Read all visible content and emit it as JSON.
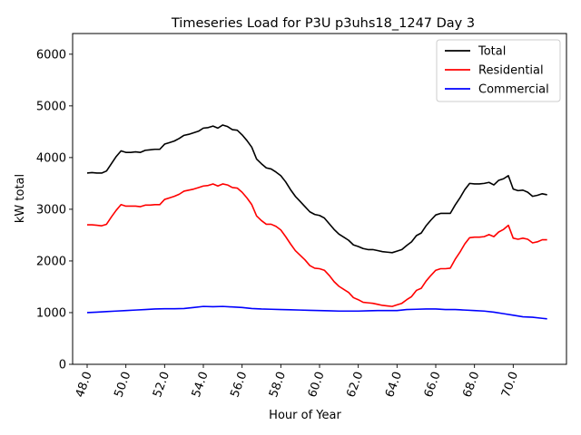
{
  "chart_data": {
    "type": "line",
    "title": "Timeseries Load for P3U p3uhs18_1247  Day 3",
    "xlabel": "Hour of Year",
    "ylabel": "kW total",
    "xlim": [
      47.25,
      72.75
    ],
    "ylim": [
      0,
      6400
    ],
    "xticks": [
      48,
      50,
      52,
      54,
      56,
      58,
      60,
      62,
      64,
      66,
      68,
      70
    ],
    "xtick_labels": [
      "48.0",
      "50.0",
      "52.0",
      "54.0",
      "56.0",
      "58.0",
      "60.0",
      "62.0",
      "64.0",
      "66.0",
      "68.0",
      "70.0"
    ],
    "yticks": [
      0,
      1000,
      2000,
      3000,
      4000,
      5000,
      6000
    ],
    "ytick_labels": [
      "0",
      "1000",
      "2000",
      "3000",
      "4000",
      "5000",
      "6000"
    ],
    "grid": false,
    "legend_position": "top-right",
    "series": [
      {
        "name": "Total",
        "color": "#000000",
        "points": [
          [
            48,
            3700
          ],
          [
            48.25,
            3710
          ],
          [
            48.5,
            3700
          ],
          [
            48.75,
            3700
          ],
          [
            49,
            3740
          ],
          [
            49.25,
            3880
          ],
          [
            49.5,
            4020
          ],
          [
            49.75,
            4130
          ],
          [
            50,
            4100
          ],
          [
            50.25,
            4100
          ],
          [
            50.5,
            4110
          ],
          [
            50.75,
            4100
          ],
          [
            51,
            4140
          ],
          [
            51.25,
            4150
          ],
          [
            51.5,
            4160
          ],
          [
            51.75,
            4160
          ],
          [
            52,
            4260
          ],
          [
            52.25,
            4290
          ],
          [
            52.5,
            4320
          ],
          [
            52.75,
            4370
          ],
          [
            53,
            4430
          ],
          [
            53.25,
            4450
          ],
          [
            53.5,
            4480
          ],
          [
            53.75,
            4510
          ],
          [
            54,
            4570
          ],
          [
            54.25,
            4580
          ],
          [
            54.5,
            4610
          ],
          [
            54.75,
            4570
          ],
          [
            55,
            4630
          ],
          [
            55.25,
            4600
          ],
          [
            55.5,
            4540
          ],
          [
            55.75,
            4530
          ],
          [
            56,
            4440
          ],
          [
            56.25,
            4330
          ],
          [
            56.5,
            4200
          ],
          [
            56.75,
            3970
          ],
          [
            57,
            3880
          ],
          [
            57.25,
            3800
          ],
          [
            57.5,
            3780
          ],
          [
            57.75,
            3720
          ],
          [
            58,
            3650
          ],
          [
            58.25,
            3530
          ],
          [
            58.5,
            3380
          ],
          [
            58.75,
            3250
          ],
          [
            59,
            3150
          ],
          [
            59.25,
            3050
          ],
          [
            59.5,
            2950
          ],
          [
            59.75,
            2900
          ],
          [
            60,
            2880
          ],
          [
            60.25,
            2830
          ],
          [
            60.5,
            2720
          ],
          [
            60.75,
            2610
          ],
          [
            61,
            2520
          ],
          [
            61.25,
            2460
          ],
          [
            61.5,
            2400
          ],
          [
            61.75,
            2310
          ],
          [
            62,
            2280
          ],
          [
            62.25,
            2240
          ],
          [
            62.5,
            2220
          ],
          [
            62.75,
            2220
          ],
          [
            63,
            2200
          ],
          [
            63.25,
            2180
          ],
          [
            63.5,
            2170
          ],
          [
            63.75,
            2160
          ],
          [
            64,
            2190
          ],
          [
            64.25,
            2220
          ],
          [
            64.5,
            2300
          ],
          [
            64.75,
            2370
          ],
          [
            65,
            2490
          ],
          [
            65.25,
            2540
          ],
          [
            65.5,
            2680
          ],
          [
            65.75,
            2790
          ],
          [
            66,
            2890
          ],
          [
            66.25,
            2920
          ],
          [
            66.5,
            2920
          ],
          [
            66.75,
            2920
          ],
          [
            67,
            3080
          ],
          [
            67.25,
            3220
          ],
          [
            67.5,
            3380
          ],
          [
            67.75,
            3500
          ],
          [
            68,
            3490
          ],
          [
            68.25,
            3490
          ],
          [
            68.5,
            3500
          ],
          [
            68.75,
            3520
          ],
          [
            69,
            3470
          ],
          [
            69.25,
            3560
          ],
          [
            69.5,
            3590
          ],
          [
            69.75,
            3650
          ],
          [
            70,
            3390
          ],
          [
            70.25,
            3360
          ],
          [
            70.5,
            3370
          ],
          [
            70.75,
            3330
          ],
          [
            71,
            3250
          ],
          [
            71.25,
            3270
          ],
          [
            71.5,
            3300
          ],
          [
            71.75,
            3280
          ]
        ]
      },
      {
        "name": "Residential",
        "color": "#ff0000",
        "points": [
          [
            48,
            2700
          ],
          [
            48.25,
            2700
          ],
          [
            48.5,
            2690
          ],
          [
            48.75,
            2680
          ],
          [
            49,
            2710
          ],
          [
            49.25,
            2850
          ],
          [
            49.5,
            2980
          ],
          [
            49.75,
            3090
          ],
          [
            50,
            3060
          ],
          [
            50.25,
            3060
          ],
          [
            50.5,
            3060
          ],
          [
            50.75,
            3050
          ],
          [
            51,
            3080
          ],
          [
            51.25,
            3080
          ],
          [
            51.5,
            3090
          ],
          [
            51.75,
            3090
          ],
          [
            52,
            3190
          ],
          [
            52.25,
            3220
          ],
          [
            52.5,
            3250
          ],
          [
            52.75,
            3290
          ],
          [
            53,
            3350
          ],
          [
            53.25,
            3370
          ],
          [
            53.5,
            3390
          ],
          [
            53.75,
            3420
          ],
          [
            54,
            3450
          ],
          [
            54.25,
            3460
          ],
          [
            54.5,
            3490
          ],
          [
            54.75,
            3450
          ],
          [
            55,
            3490
          ],
          [
            55.25,
            3470
          ],
          [
            55.5,
            3420
          ],
          [
            55.75,
            3410
          ],
          [
            56,
            3330
          ],
          [
            56.25,
            3220
          ],
          [
            56.5,
            3090
          ],
          [
            56.75,
            2870
          ],
          [
            57,
            2780
          ],
          [
            57.25,
            2710
          ],
          [
            57.5,
            2710
          ],
          [
            57.75,
            2670
          ],
          [
            58,
            2600
          ],
          [
            58.25,
            2470
          ],
          [
            58.5,
            2330
          ],
          [
            58.75,
            2200
          ],
          [
            59,
            2110
          ],
          [
            59.25,
            2020
          ],
          [
            59.5,
            1910
          ],
          [
            59.75,
            1860
          ],
          [
            60,
            1850
          ],
          [
            60.25,
            1820
          ],
          [
            60.5,
            1720
          ],
          [
            60.75,
            1600
          ],
          [
            61,
            1510
          ],
          [
            61.25,
            1450
          ],
          [
            61.5,
            1390
          ],
          [
            61.75,
            1290
          ],
          [
            62,
            1250
          ],
          [
            62.25,
            1200
          ],
          [
            62.5,
            1190
          ],
          [
            62.75,
            1180
          ],
          [
            63,
            1160
          ],
          [
            63.25,
            1140
          ],
          [
            63.5,
            1130
          ],
          [
            63.75,
            1120
          ],
          [
            64,
            1150
          ],
          [
            64.25,
            1180
          ],
          [
            64.5,
            1250
          ],
          [
            64.75,
            1310
          ],
          [
            65,
            1430
          ],
          [
            65.25,
            1470
          ],
          [
            65.5,
            1610
          ],
          [
            65.75,
            1720
          ],
          [
            66,
            1820
          ],
          [
            66.25,
            1850
          ],
          [
            66.5,
            1850
          ],
          [
            66.75,
            1860
          ],
          [
            67,
            2030
          ],
          [
            67.25,
            2170
          ],
          [
            67.5,
            2330
          ],
          [
            67.75,
            2450
          ],
          [
            68,
            2460
          ],
          [
            68.25,
            2460
          ],
          [
            68.5,
            2470
          ],
          [
            68.75,
            2510
          ],
          [
            69,
            2470
          ],
          [
            69.25,
            2560
          ],
          [
            69.5,
            2610
          ],
          [
            69.75,
            2690
          ],
          [
            70,
            2440
          ],
          [
            70.25,
            2420
          ],
          [
            70.5,
            2440
          ],
          [
            70.75,
            2420
          ],
          [
            71,
            2350
          ],
          [
            71.25,
            2370
          ],
          [
            71.5,
            2410
          ],
          [
            71.75,
            2410
          ]
        ]
      },
      {
        "name": "Commercial",
        "color": "#0000ff",
        "points": [
          [
            48,
            1000
          ],
          [
            48.5,
            1010
          ],
          [
            49,
            1020
          ],
          [
            49.5,
            1030
          ],
          [
            50,
            1040
          ],
          [
            50.5,
            1050
          ],
          [
            51,
            1060
          ],
          [
            51.5,
            1070
          ],
          [
            52,
            1075
          ],
          [
            52.5,
            1075
          ],
          [
            53,
            1080
          ],
          [
            53.5,
            1100
          ],
          [
            54,
            1120
          ],
          [
            54.5,
            1115
          ],
          [
            55,
            1120
          ],
          [
            55.5,
            1110
          ],
          [
            56,
            1100
          ],
          [
            56.5,
            1080
          ],
          [
            57,
            1070
          ],
          [
            57.5,
            1065
          ],
          [
            58,
            1060
          ],
          [
            58.5,
            1055
          ],
          [
            59,
            1050
          ],
          [
            59.5,
            1045
          ],
          [
            60,
            1040
          ],
          [
            60.5,
            1035
          ],
          [
            61,
            1030
          ],
          [
            61.5,
            1030
          ],
          [
            62,
            1030
          ],
          [
            62.5,
            1035
          ],
          [
            63,
            1040
          ],
          [
            63.5,
            1040
          ],
          [
            64,
            1040
          ],
          [
            64.5,
            1060
          ],
          [
            65,
            1065
          ],
          [
            65.5,
            1070
          ],
          [
            66,
            1070
          ],
          [
            66.5,
            1060
          ],
          [
            67,
            1060
          ],
          [
            67.5,
            1050
          ],
          [
            68,
            1040
          ],
          [
            68.5,
            1030
          ],
          [
            69,
            1010
          ],
          [
            69.5,
            980
          ],
          [
            70,
            950
          ],
          [
            70.5,
            920
          ],
          [
            71,
            910
          ],
          [
            71.5,
            890
          ],
          [
            71.75,
            880
          ]
        ]
      }
    ]
  }
}
